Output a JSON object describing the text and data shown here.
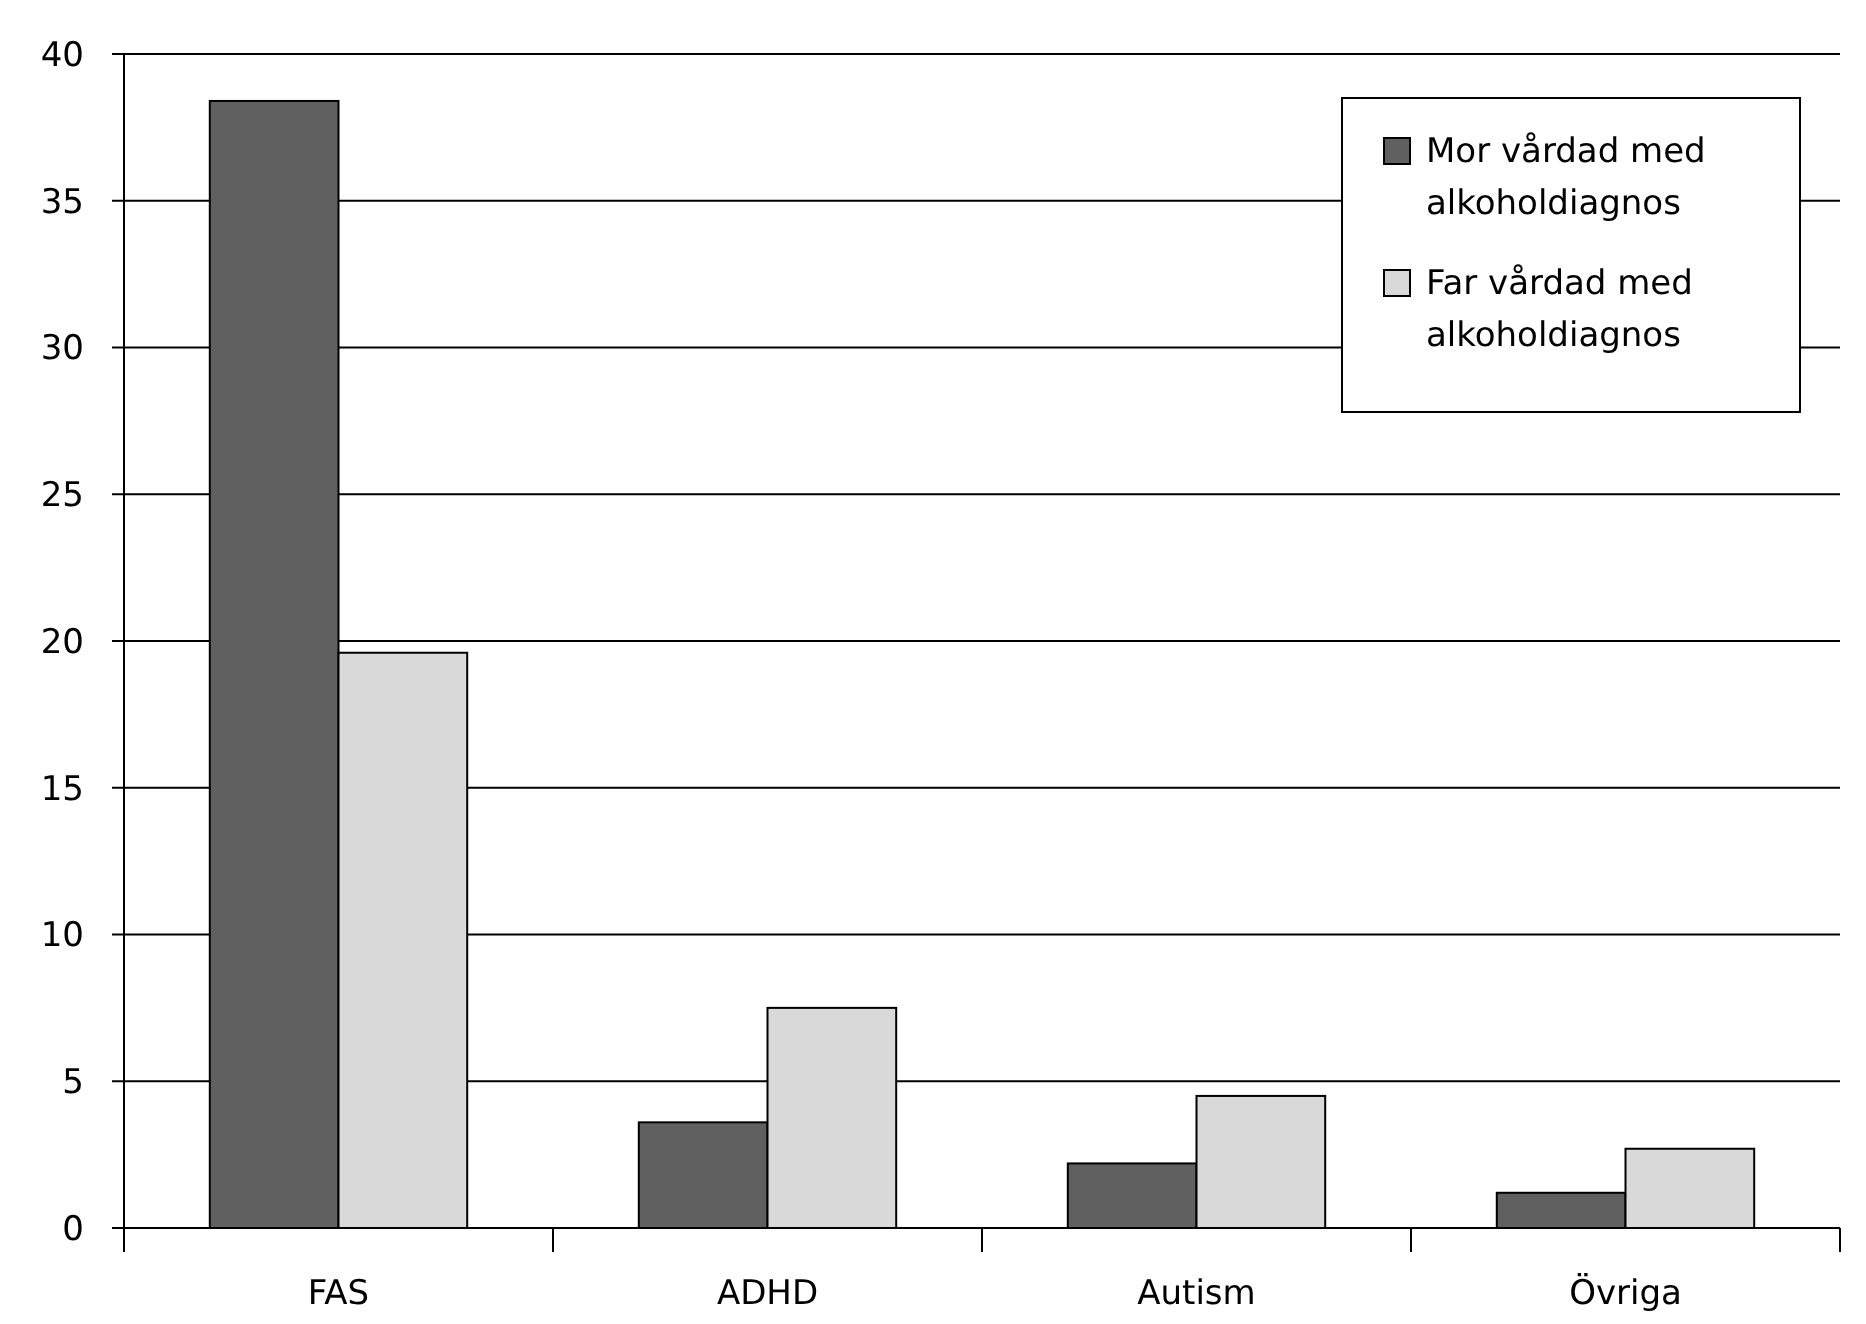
{
  "chart_data": {
    "type": "bar",
    "categories": [
      "FAS",
      "ADHD",
      "Autism",
      "Övriga"
    ],
    "series": [
      {
        "name": "Mor vårdad med alkoholdiagnos",
        "color": "#606060",
        "values": [
          38.4,
          3.6,
          2.2,
          1.2
        ]
      },
      {
        "name": "Far vårdad med alkoholdiagnos",
        "color": "#d9d9d9",
        "values": [
          19.6,
          7.5,
          4.5,
          2.7
        ]
      }
    ],
    "ylim": [
      0,
      40
    ],
    "yticks": [
      0,
      5,
      10,
      15,
      20,
      25,
      30,
      35,
      40
    ],
    "grid": "y",
    "legend": "top right"
  }
}
